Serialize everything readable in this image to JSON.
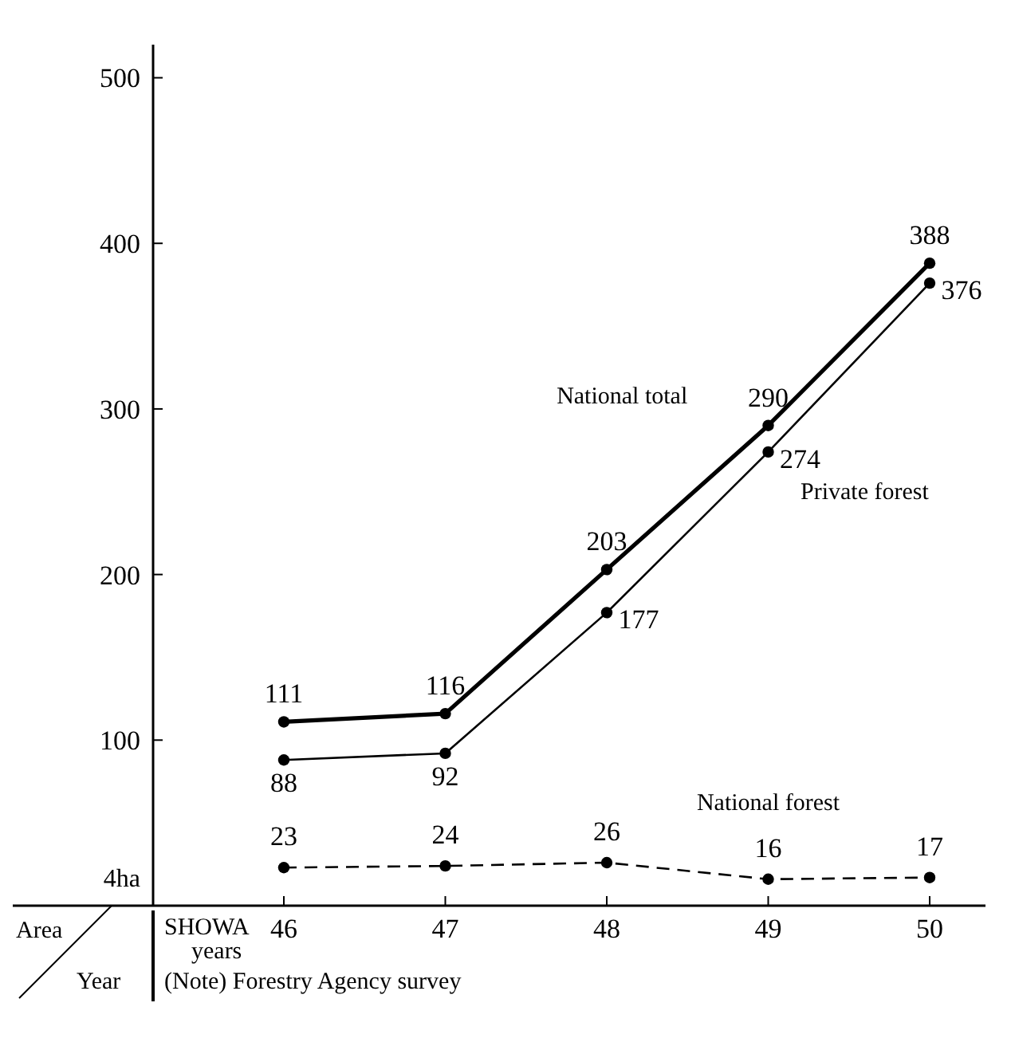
{
  "chart_data": {
    "type": "line",
    "ylabel": "4ha",
    "xlabel": "SHOWA years",
    "categories": [
      "46",
      "47",
      "48",
      "49",
      "50"
    ],
    "series": [
      {
        "name": "National total",
        "color": "#000000",
        "values": [
          111,
          116,
          203,
          290,
          388
        ],
        "line_style": "solid"
      },
      {
        "name": "Private forest",
        "color": "#000000",
        "values": [
          88,
          92,
          177,
          274,
          376
        ],
        "line_style": "solid"
      },
      {
        "name": "National forest",
        "color": "#000000",
        "values": [
          23,
          24,
          26,
          16,
          17
        ],
        "line_style": "dashed"
      }
    ],
    "ylim": [
      0,
      520
    ],
    "yticks": [
      100,
      200,
      300,
      400,
      500
    ],
    "marker": "circle",
    "data_labels": true,
    "grid": false,
    "annotations": [
      "Area",
      "Year",
      "(Note) Forestry Agency survey"
    ]
  }
}
